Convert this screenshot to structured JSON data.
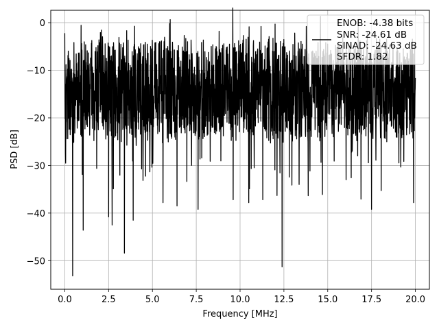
{
  "chart_data": {
    "type": "line",
    "title": "",
    "xlabel": "Frequency [MHz]",
    "ylabel": "PSD [dB]",
    "xlim": [
      -0.8,
      20.8
    ],
    "ylim": [
      -56,
      2.6
    ],
    "xticks": [
      0.0,
      2.5,
      5.0,
      7.5,
      10.0,
      12.5,
      15.0,
      17.5,
      20.0
    ],
    "xtick_labels": [
      "0.0",
      "2.5",
      "5.0",
      "7.5",
      "10.0",
      "12.5",
      "15.0",
      "17.5",
      "20.0"
    ],
    "yticks": [
      0,
      -10,
      -20,
      -30,
      -40,
      -50
    ],
    "ytick_labels": [
      "0",
      "−10",
      "−20",
      "−30",
      "−40",
      "−50"
    ],
    "grid": true,
    "legend_position": "top-right",
    "legend_lines": [
      "ENOB: -4.38 bits",
      "SNR: -24.61 dB",
      "SINAD: -24.63 dB",
      "SFDR: 1.82"
    ],
    "series_color": "#000000",
    "x_range": [
      0,
      20
    ],
    "noise_band_dB": [
      -29,
      -9
    ],
    "spikes": [
      {
        "x": 0.0,
        "y": -2.2
      },
      {
        "x": 0.05,
        "y": -29.5
      },
      {
        "x": 0.45,
        "y": -53.2
      },
      {
        "x": 1.05,
        "y": -43.6
      },
      {
        "x": 2.5,
        "y": -40.8
      },
      {
        "x": 2.7,
        "y": -42.5
      },
      {
        "x": 3.4,
        "y": -48.4
      },
      {
        "x": 3.9,
        "y": -41.5
      },
      {
        "x": 5.6,
        "y": -37.8
      },
      {
        "x": 6.4,
        "y": -38.5
      },
      {
        "x": 7.6,
        "y": -39.2
      },
      {
        "x": 8.8,
        "y": -1.8
      },
      {
        "x": 9.6,
        "y": -37.2
      },
      {
        "x": 10.5,
        "y": -37.8
      },
      {
        "x": 11.3,
        "y": -37.2
      },
      {
        "x": 12.0,
        "y": -0.3
      },
      {
        "x": 12.4,
        "y": -51.3
      },
      {
        "x": 14.7,
        "y": -36.1
      },
      {
        "x": 17.5,
        "y": -39.2
      },
      {
        "x": 19.9,
        "y": -37.8
      },
      {
        "x": 5.0,
        "y": -6.5
      },
      {
        "x": 7.0,
        "y": -4.0
      },
      {
        "x": 10.2,
        "y": -2.7
      },
      {
        "x": 13.4,
        "y": -5.5
      },
      {
        "x": 15.0,
        "y": -4.5
      }
    ]
  }
}
